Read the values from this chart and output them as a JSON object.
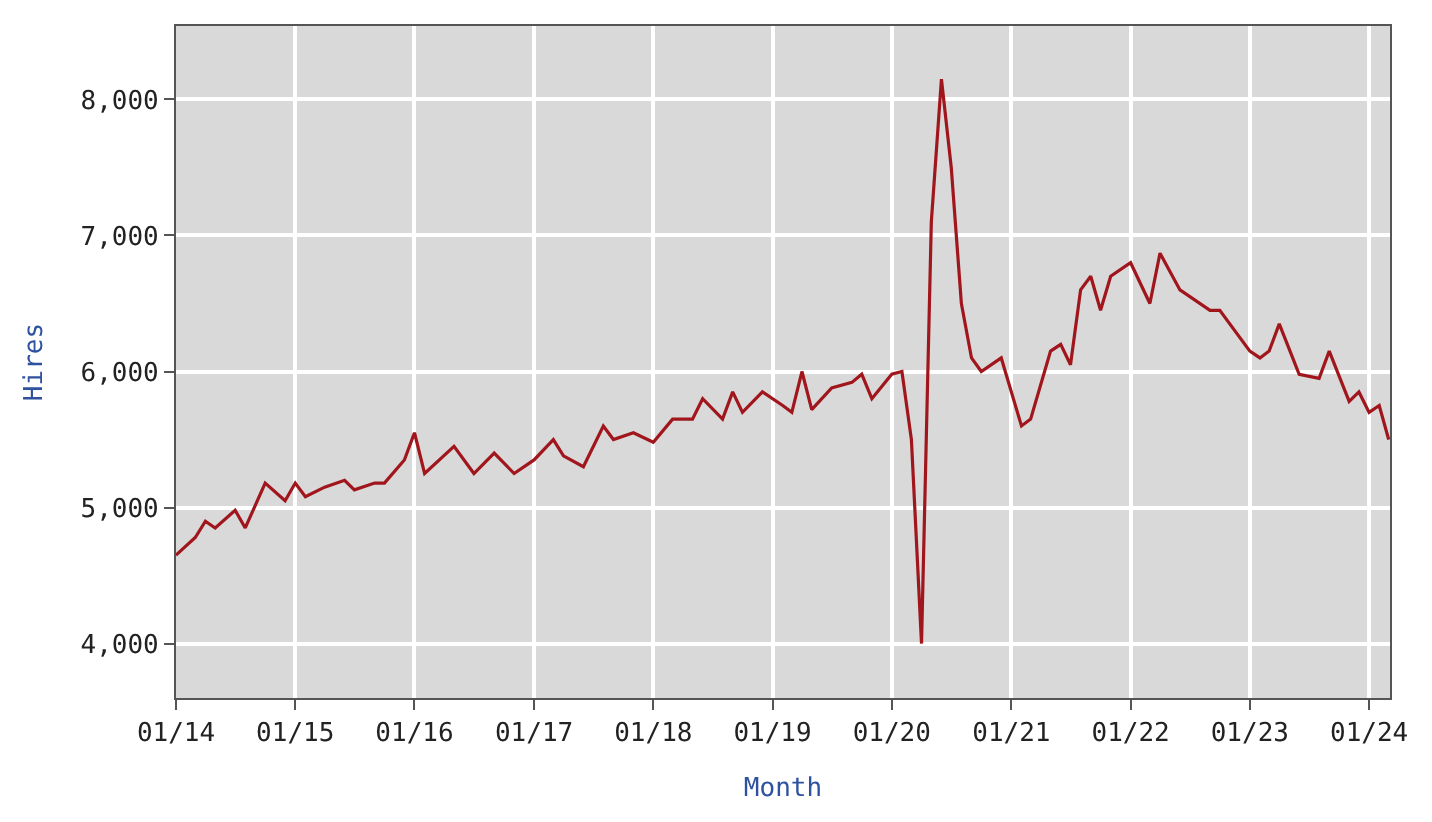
{
  "chart_data": {
    "type": "line",
    "xlabel": "Month",
    "ylabel": "Hires",
    "x": [
      "2014-01",
      "2014-03",
      "2014-04",
      "2014-05",
      "2014-07",
      "2014-08",
      "2014-10",
      "2014-12",
      "2015-01",
      "2015-02",
      "2015-04",
      "2015-06",
      "2015-07",
      "2015-09",
      "2015-10",
      "2015-12",
      "2016-01",
      "2016-02",
      "2016-05",
      "2016-07",
      "2016-09",
      "2016-11",
      "2017-01",
      "2017-03",
      "2017-04",
      "2017-06",
      "2017-08",
      "2017-09",
      "2017-11",
      "2018-01",
      "2018-03",
      "2018-05",
      "2018-06",
      "2018-08",
      "2018-09",
      "2018-10",
      "2018-12",
      "2019-02",
      "2019-03",
      "2019-04",
      "2019-05",
      "2019-07",
      "2019-09",
      "2019-10",
      "2019-11",
      "2020-01",
      "2020-02",
      "2020-03",
      "2020-04",
      "2020-05",
      "2020-06",
      "2020-07",
      "2020-08",
      "2020-09",
      "2020-10",
      "2020-12",
      "2021-02",
      "2021-03",
      "2021-05",
      "2021-06",
      "2021-07",
      "2021-08",
      "2021-09",
      "2021-10",
      "2021-11",
      "2022-01",
      "2022-03",
      "2022-04",
      "2022-06",
      "2022-09",
      "2022-10",
      "2023-01",
      "2023-02",
      "2023-03",
      "2023-04",
      "2023-06",
      "2023-08",
      "2023-09",
      "2023-11",
      "2023-12",
      "2024-01",
      "2024-02",
      "2024-03"
    ],
    "series": [
      {
        "color": "#a0161c",
        "values": [
          4650,
          4780,
          4900,
          4850,
          4980,
          4850,
          5180,
          5050,
          5180,
          5080,
          5150,
          5200,
          5130,
          5180,
          5180,
          5350,
          5550,
          5250,
          5450,
          5250,
          5400,
          5250,
          5350,
          5500,
          5380,
          5300,
          5600,
          5500,
          5550,
          5480,
          5650,
          5650,
          5800,
          5650,
          5850,
          5700,
          5850,
          5750,
          5700,
          6000,
          5720,
          5880,
          5920,
          5980,
          5800,
          5980,
          6000,
          5500,
          4000,
          7100,
          8150,
          7500,
          6500,
          6100,
          6000,
          6100,
          5600,
          5650,
          6150,
          6200,
          6050,
          6600,
          6700,
          6450,
          6700,
          6800,
          6500,
          6870,
          6600,
          6450,
          6450,
          6150,
          6100,
          6150,
          6350,
          5980,
          5950,
          6150,
          5780,
          5850,
          5700,
          5750,
          5500
        ]
      }
    ],
    "xlim": [
      "2014-01",
      "2024-03-05"
    ],
    "xticks": [
      {
        "value": "2014-01",
        "label": "01/14"
      },
      {
        "value": "2015-01",
        "label": "01/15"
      },
      {
        "value": "2016-01",
        "label": "01/16"
      },
      {
        "value": "2017-01",
        "label": "01/17"
      },
      {
        "value": "2018-01",
        "label": "01/18"
      },
      {
        "value": "2019-01",
        "label": "01/19"
      },
      {
        "value": "2020-01",
        "label": "01/20"
      },
      {
        "value": "2021-01",
        "label": "01/21"
      },
      {
        "value": "2022-01",
        "label": "01/22"
      },
      {
        "value": "2023-01",
        "label": "01/23"
      },
      {
        "value": "2024-01",
        "label": "01/24"
      }
    ],
    "ylim": [
      3600,
      8540
    ],
    "yticks": [
      {
        "value": 4000,
        "label": "4,000"
      },
      {
        "value": 5000,
        "label": "5,000"
      },
      {
        "value": 6000,
        "label": "6,000"
      },
      {
        "value": 7000,
        "label": "7,000"
      },
      {
        "value": 8000,
        "label": "8,000"
      }
    ],
    "grid": true,
    "marker": "none",
    "line_style": "solid"
  }
}
